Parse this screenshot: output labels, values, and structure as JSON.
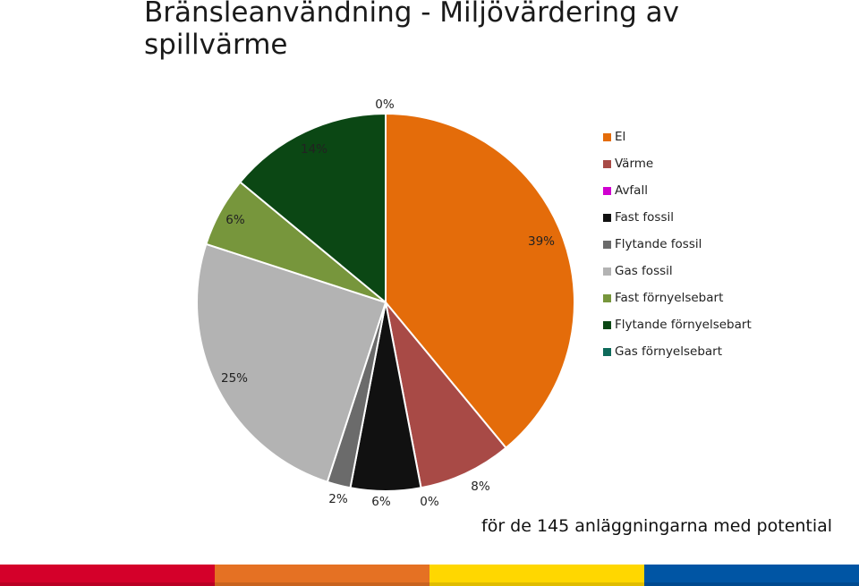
{
  "header": {
    "title": "Bränsleanvändning -  Miljövärdering av spillvärme",
    "subtitle": "för de 145 anläggningarna med potential"
  },
  "chart_data": {
    "type": "pie",
    "title": "Bränsleanvändning -  Miljövärdering av spillvärme",
    "subtitle": "för de 145 anläggningarna med potential",
    "categories": [
      "El",
      "Värme",
      "Avfall",
      "Fast fossil",
      "Flytande fossil",
      "Gas fossil",
      "Fast förnyelsebart",
      "Flytande förnyelsebart",
      "Gas förnyelsebart"
    ],
    "values": [
      39,
      8,
      0,
      6,
      2,
      25,
      6,
      14,
      0
    ],
    "labels": [
      "39%",
      "8%",
      "0%",
      "6%",
      "2%",
      "25%",
      "6%",
      "14%",
      "0%"
    ],
    "colors": [
      "#E46C0A",
      "#A84A46",
      "#D000D0",
      "#111111",
      "#6B6B6B",
      "#B3B3B3",
      "#77963C",
      "#0B4714",
      "#0E6A5A"
    ],
    "legend_position": "right"
  },
  "footer": {
    "colors": [
      "#D4002A",
      "#E57123",
      "#FFD700",
      "#0055A4"
    ]
  }
}
